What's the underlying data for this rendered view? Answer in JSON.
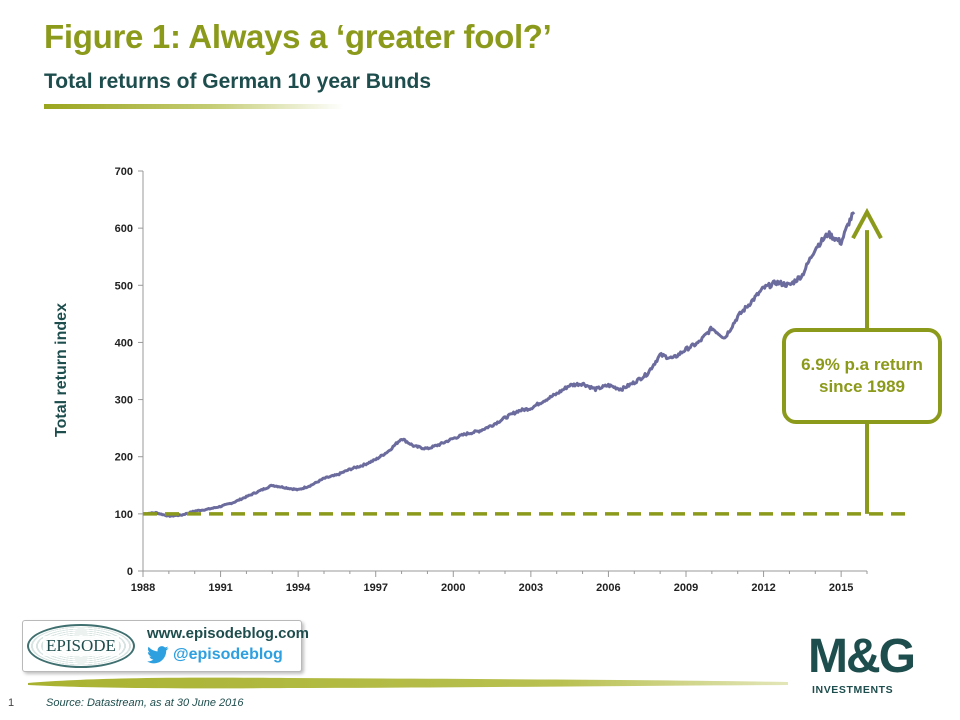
{
  "header": {
    "title": "Figure 1: Always a ‘greater fool?’",
    "subtitle": "Total returns of German 10 year Bunds"
  },
  "chart_data": {
    "type": "line",
    "ylabel": "Total return index",
    "ylim": [
      0,
      700
    ],
    "yticks": [
      0,
      100,
      200,
      300,
      400,
      500,
      600,
      700
    ],
    "xlim": [
      1988,
      2016
    ],
    "xticks": [
      1988,
      1991,
      1994,
      1997,
      2000,
      2003,
      2006,
      2009,
      2012,
      2015
    ],
    "baseline": 100,
    "annotation": [
      "6.9% p.a return",
      "since 1989"
    ],
    "arrow": {
      "from": 100,
      "to": 628
    },
    "series": [
      {
        "color": "#6b6b9e",
        "x": [
          1988.0,
          1988.5,
          1989.0,
          1989.5,
          1990.0,
          1990.5,
          1991.0,
          1991.5,
          1992.0,
          1992.5,
          1993.0,
          1993.5,
          1994.0,
          1994.5,
          1995.0,
          1995.5,
          1996.0,
          1996.5,
          1997.0,
          1997.5,
          1998.0,
          1998.5,
          1999.0,
          1999.5,
          2000.0,
          2000.5,
          2001.0,
          2001.5,
          2002.0,
          2002.5,
          2003.0,
          2003.5,
          2004.0,
          2004.5,
          2005.0,
          2005.5,
          2006.0,
          2006.5,
          2007.0,
          2007.5,
          2008.0,
          2008.5,
          2009.0,
          2009.5,
          2010.0,
          2010.5,
          2011.0,
          2011.5,
          2012.0,
          2012.5,
          2013.0,
          2013.5,
          2014.0,
          2014.5,
          2015.0,
          2015.3,
          2015.5
        ],
        "values": [
          100,
          102,
          96,
          98,
          105,
          108,
          113,
          120,
          130,
          140,
          150,
          146,
          142,
          150,
          162,
          168,
          178,
          185,
          195,
          210,
          232,
          218,
          214,
          222,
          232,
          240,
          245,
          255,
          268,
          280,
          285,
          298,
          310,
          325,
          328,
          318,
          325,
          318,
          330,
          345,
          378,
          372,
          388,
          400,
          425,
          408,
          445,
          470,
          495,
          505,
          500,
          518,
          565,
          590,
          575,
          610,
          628
        ]
      }
    ]
  },
  "footer": {
    "website": "www.episodeblog.com",
    "twitter": "@episodeblog",
    "episode_logo": "EPISODE",
    "mg_logo": "M&G",
    "mg_sub": "INVESTMENTS",
    "page_number": "1",
    "source": "Source: Datastream, as at 30 June 2016"
  },
  "colors": {
    "accent": "#8c9a1b",
    "dark_teal": "#1e4d4d",
    "series": "#6b6b9e",
    "twitter": "#2ea0e0"
  }
}
